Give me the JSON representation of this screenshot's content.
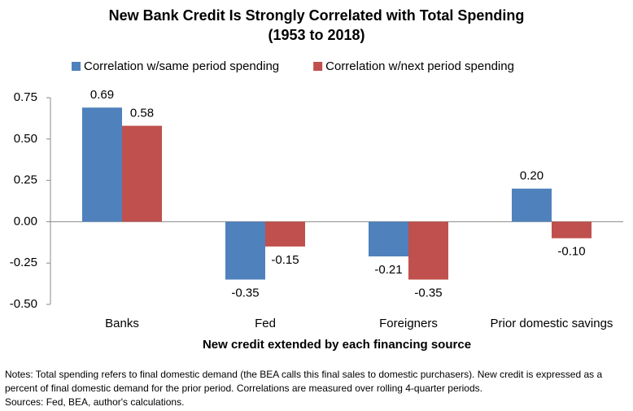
{
  "chart_data": {
    "type": "bar",
    "title": "New Bank Credit Is Strongly Correlated with Total Spending",
    "subtitle": "(1953 to 2018)",
    "x_label": "New credit extended by each financing source",
    "categories": [
      "Banks",
      "Fed",
      "Foreigners",
      "Prior domestic savings"
    ],
    "series": [
      {
        "name": "Correlation w/same period spending",
        "color": "#4f81bd",
        "values": [
          0.69,
          -0.35,
          -0.21,
          0.2
        ],
        "value_labels": [
          "0.69",
          "-0.35",
          "-0.21",
          "0.20"
        ]
      },
      {
        "name": "Correlation w/next period spending",
        "color": "#c0504d",
        "values": [
          0.58,
          -0.15,
          -0.35,
          -0.1
        ],
        "value_labels": [
          "0.58",
          "-0.15",
          "-0.35",
          "-0.10"
        ]
      }
    ],
    "ylim": [
      -0.5,
      0.75
    ],
    "yticks": [
      {
        "value": -0.5,
        "label": "-0.50"
      },
      {
        "value": -0.25,
        "label": "-0.25"
      },
      {
        "value": 0,
        "label": "0.00"
      },
      {
        "value": 0.25,
        "label": "0.25"
      },
      {
        "value": 0.5,
        "label": "0.50"
      },
      {
        "value": 0.75,
        "label": "0.75"
      }
    ],
    "legend": "top",
    "notes": "Notes: Total spending refers to final domestic demand (the BEA calls this final sales to domestic purchasers). New credit is expressed as a percent of final domestic demand for the prior period. Correlations are measured over rolling 4-quarter periods.",
    "sources": "Sources: Fed, BEA, author's calculations."
  }
}
